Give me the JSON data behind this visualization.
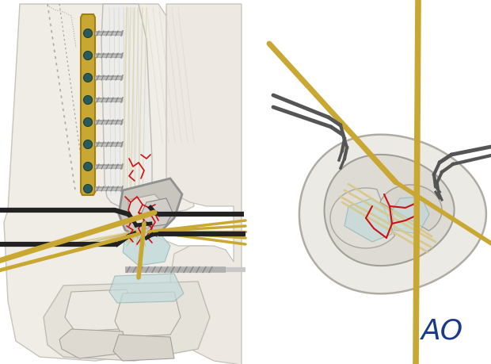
{
  "bg_color": "#ffffff",
  "ao_text": "AO",
  "ao_color": "#1a3a8a",
  "fig_width": 6.2,
  "fig_height": 4.59,
  "dpi": 100,
  "plate_color": "#c8a832",
  "plate_outline": "#a08010",
  "plate_hole_color": "#2a5a5a",
  "bone_light": "#eceae4",
  "bone_mid": "#dedad2",
  "bone_dark": "#c8c4bc",
  "cartilage_color": "#c0dada",
  "fracture_color": "#cc1111",
  "wire_color": "#c8a832",
  "wire_color2": "#d4bc6a",
  "retractor_color": "#444444",
  "screw_color": "#909090",
  "tendon_color": "#ddd0a0",
  "tissue_color": "#e8e4dc",
  "skin_outer": "#f0ece4",
  "grey_line": "#888888"
}
